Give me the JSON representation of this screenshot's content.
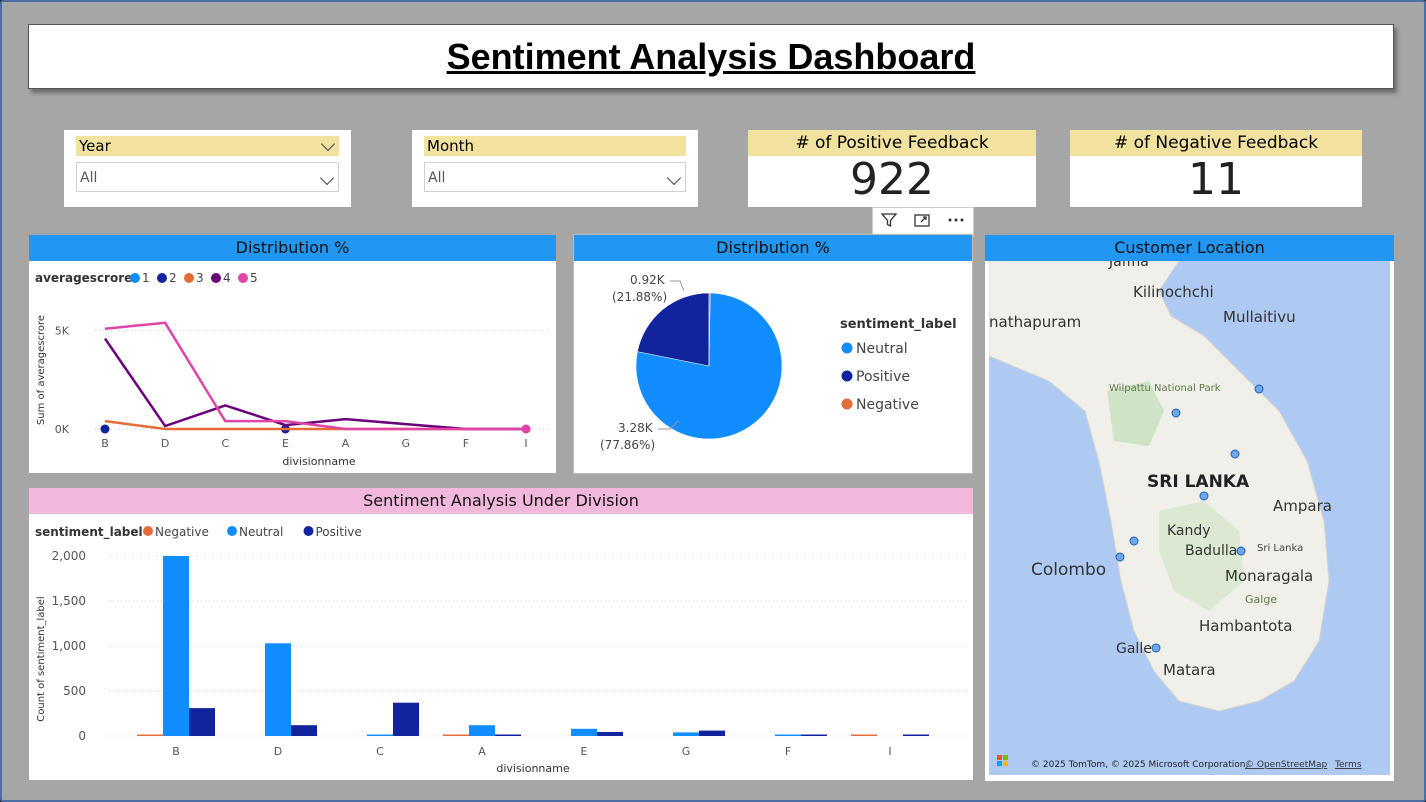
{
  "title": "Sentiment Analysis Dashboard",
  "slicers": {
    "year": {
      "label": "Year",
      "value": "All"
    },
    "month": {
      "label": "Month",
      "value": "All"
    }
  },
  "kpis": {
    "positive": {
      "label": "# of Positive Feedback",
      "value": "922"
    },
    "negative": {
      "label": "# of Negative Feedback",
      "value": "11"
    }
  },
  "toolbar": {
    "filter_icon": "filter-icon",
    "focus_icon": "focus-mode-icon",
    "more_icon": "more-options-icon"
  },
  "line_panel": {
    "title": "Distribution %"
  },
  "pie_panel": {
    "title": "Distribution %"
  },
  "map_panel": {
    "title": "Customer Location",
    "labels": {
      "jaffna": "Jaffna",
      "kilinochchi": "Kilinochchi",
      "mullaitivu": "Mullaitivu",
      "anuradhapura": "nathapuram",
      "wilpattu": "Wilpattu National Park",
      "srilanka": "SRI LANKA",
      "ampara": "Ampara",
      "kandy": "Kandy",
      "badulla": "Badulla",
      "srilanka_small": "Sri Lanka",
      "colombo": "Colombo",
      "monaragala": "Monaragala",
      "galge": "Galge",
      "hambantota": "Hambantota",
      "galle": "Galle",
      "matara": "Matara"
    },
    "attribution": "© 2025 TomTom, © 2025 Microsoft Corporation,",
    "osm": "© OpenStreetMap",
    "terms": "Terms",
    "logo": "Microsoft Bing"
  },
  "bar_panel": {
    "title": "Sentiment Analysis Under Division"
  },
  "chart_data": [
    {
      "type": "line",
      "title": "Distribution %",
      "legend_title": "averagescrore",
      "xlabel": "divisionname",
      "ylabel": "Sum of averagescrore",
      "categories": [
        "B",
        "D",
        "C",
        "E",
        "A",
        "G",
        "F",
        "I"
      ],
      "ylim": [
        0,
        6000
      ],
      "y_ticks": [
        {
          "v": 0,
          "label": "0K"
        },
        {
          "v": 5000,
          "label": "5K"
        }
      ],
      "series": [
        {
          "name": "1",
          "color": "#118dff",
          "values": [
            null,
            null,
            null,
            null,
            null,
            null,
            null,
            null
          ]
        },
        {
          "name": "2",
          "color": "#12239e",
          "values": [
            0,
            null,
            null,
            0,
            null,
            null,
            null,
            null
          ]
        },
        {
          "name": "3",
          "color": "#e66c37",
          "values": [
            400,
            0,
            0,
            0,
            0,
            0,
            0,
            0
          ]
        },
        {
          "name": "4",
          "color": "#6b007b",
          "values": [
            4600,
            150,
            1200,
            200,
            500,
            250,
            0,
            0
          ]
        },
        {
          "name": "5",
          "color": "#e044a7",
          "values": [
            5100,
            5400,
            400,
            400,
            0,
            0,
            0,
            0
          ]
        }
      ],
      "legend": "top-left"
    },
    {
      "type": "pie",
      "title": "Distribution %",
      "legend_title": "sentiment_label",
      "slices": [
        {
          "name": "Neutral",
          "value": 3280,
          "percent": 77.86,
          "color": "#118dff",
          "label": "3.28K",
          "pct_label": "(77.86%)"
        },
        {
          "name": "Positive",
          "value": 920,
          "percent": 21.88,
          "color": "#12239e",
          "label": "0.92K",
          "pct_label": "(21.88%)"
        },
        {
          "name": "Negative",
          "value": 11,
          "percent": 0.26,
          "color": "#e66c37"
        }
      ],
      "legend": "right"
    },
    {
      "type": "bar",
      "title": "Sentiment Analysis Under Division",
      "legend_title": "sentiment_label",
      "xlabel": "divisionname",
      "ylabel": "Count of sentiment_label",
      "categories": [
        "B",
        "D",
        "C",
        "A",
        "E",
        "G",
        "F",
        "I"
      ],
      "ylim": [
        0,
        2000
      ],
      "y_ticks": [
        {
          "v": 0,
          "label": "0"
        },
        {
          "v": 500,
          "label": "500"
        },
        {
          "v": 1000,
          "label": "1,000"
        },
        {
          "v": 1500,
          "label": "1,500"
        },
        {
          "v": 2000,
          "label": "2,000"
        }
      ],
      "series": [
        {
          "name": "Negative",
          "color": "#e66c37",
          "values": [
            5,
            0,
            0,
            5,
            0,
            0,
            0,
            5
          ]
        },
        {
          "name": "Neutral",
          "color": "#118dff",
          "values": [
            2000,
            1030,
            10,
            120,
            80,
            40,
            10,
            0
          ]
        },
        {
          "name": "Positive",
          "color": "#12239e",
          "values": [
            310,
            120,
            370,
            15,
            45,
            60,
            15,
            15
          ]
        }
      ],
      "legend": "top-left"
    }
  ]
}
